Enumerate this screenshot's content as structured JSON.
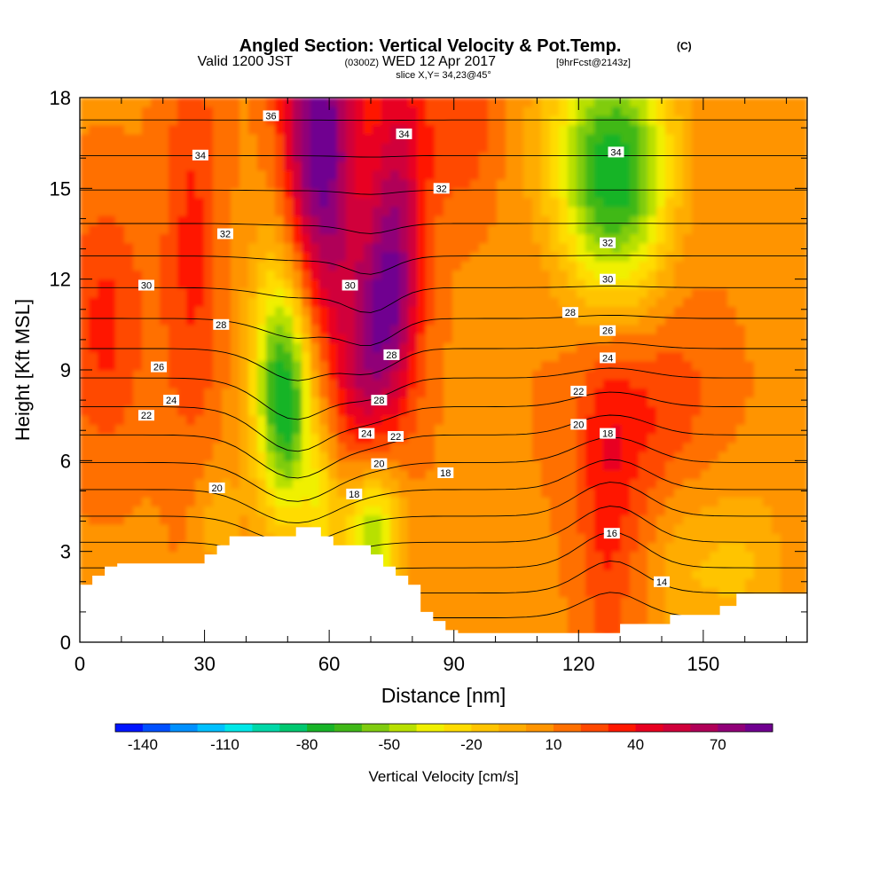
{
  "header": {
    "title_main": "Angled Section: Vertical Velocity & Pot.Temp.",
    "title_unit": "(C)",
    "valid_prefix": "Valid 1200 JST",
    "valid_utc": "(0300Z)",
    "valid_date": "WED 12 Apr 2017",
    "forecast": "[9hrFcst@2143z]",
    "slice": "slice X,Y= 34,23@45°"
  },
  "chart_data": {
    "type": "heatmap",
    "title": "Angled Section: Vertical Velocity & Pot.Temp. (C)",
    "xlabel": "Distance [nm]",
    "ylabel": "Height [Kft MSL]",
    "xlim": [
      0,
      175
    ],
    "ylim": [
      0,
      18
    ],
    "x_ticks": [
      0,
      30,
      60,
      90,
      120,
      150
    ],
    "y_ticks": [
      0,
      3,
      6,
      9,
      12,
      15,
      18
    ],
    "grid": false,
    "colorbar": {
      "label": "Vertical Velocity [cm/s]",
      "tick_labels": [
        "-140",
        "-110",
        "-80",
        "-50",
        "-20",
        "10",
        "40",
        "70"
      ],
      "tick_values": [
        -140,
        -110,
        -80,
        -50,
        -20,
        10,
        40,
        70
      ],
      "range": [
        -150,
        90
      ],
      "step": 10,
      "colors": [
        "#0014ff",
        "#0050ff",
        "#0090ff",
        "#00c0ff",
        "#00e8e8",
        "#00d8a8",
        "#00c870",
        "#18b428",
        "#40b818",
        "#80cc10",
        "#b8e000",
        "#f0f000",
        "#ffdc00",
        "#ffc400",
        "#ffac00",
        "#ff9400",
        "#ff7000",
        "#ff4800",
        "#ff1800",
        "#e80020",
        "#d0003a",
        "#b00058",
        "#900078",
        "#700090"
      ]
    },
    "terrain_profile": {
      "x": [
        0,
        3,
        3,
        6,
        6,
        9,
        9,
        30,
        30,
        33,
        33,
        36,
        36,
        52,
        52,
        58,
        58,
        61,
        61,
        64,
        64,
        70,
        70,
        73,
        73,
        76,
        76,
        79,
        79,
        82,
        82,
        85,
        85,
        88,
        88,
        91,
        91,
        130,
        130,
        142,
        142,
        154,
        154,
        158,
        158,
        175
      ],
      "h": [
        1.9,
        1.9,
        2.2,
        2.2,
        2.5,
        2.5,
        2.6,
        2.6,
        2.9,
        2.9,
        3.2,
        3.2,
        3.5,
        3.5,
        3.8,
        3.8,
        3.5,
        3.5,
        3.2,
        3.2,
        3.2,
        3.2,
        2.9,
        2.9,
        2.5,
        2.5,
        2.2,
        2.2,
        1.9,
        1.9,
        1.0,
        1.0,
        0.7,
        0.7,
        0.4,
        0.4,
        0.3,
        0.3,
        0.6,
        0.6,
        0.9,
        0.9,
        1.2,
        1.2,
        1.6,
        1.6
      ]
    },
    "velocity_features": [
      {
        "x": 57,
        "h": 17.5,
        "sx": 6,
        "sh": 3.5,
        "value": 60
      },
      {
        "x": 60,
        "h": 13.5,
        "sx": 7,
        "sh": 4.5,
        "value": 35
      },
      {
        "x": 77,
        "h": 14.5,
        "sx": 5,
        "sh": 4.5,
        "value": 45
      },
      {
        "x": 74,
        "h": 11.0,
        "sx": 4,
        "sh": 2.5,
        "value": 40
      },
      {
        "x": 68,
        "h": 9.0,
        "sx": 4,
        "sh": 2.5,
        "value": 35
      },
      {
        "x": 50,
        "h": 7.5,
        "sx": 5,
        "sh": 2.5,
        "value": -65
      },
      {
        "x": 48,
        "h": 10.0,
        "sx": 5,
        "sh": 3.0,
        "value": -40
      },
      {
        "x": 70,
        "h": 3.5,
        "sx": 5,
        "sh": 1.8,
        "value": -60
      },
      {
        "x": 58,
        "h": 4.5,
        "sx": 3,
        "sh": 1.5,
        "value": -30
      },
      {
        "x": 127,
        "h": 16.5,
        "sx": 10,
        "sh": 2.5,
        "value": -60
      },
      {
        "x": 135,
        "h": 14.0,
        "sx": 6,
        "sh": 3.0,
        "value": -25
      },
      {
        "x": 125,
        "h": 13.5,
        "sx": 7,
        "sh": 2.5,
        "value": -30
      },
      {
        "x": 27,
        "h": 13.0,
        "sx": 5,
        "sh": 5.0,
        "value": 25
      },
      {
        "x": 6,
        "h": 10.5,
        "sx": 7,
        "sh": 3.0,
        "value": 25
      },
      {
        "x": 135,
        "h": 8.0,
        "sx": 12,
        "sh": 2.5,
        "value": 25
      },
      {
        "x": 127,
        "h": 4.0,
        "sx": 5,
        "sh": 3.5,
        "value": 22
      },
      {
        "x": 158,
        "h": 2.5,
        "sx": 8,
        "sh": 2.0,
        "value": -20
      },
      {
        "x": 145,
        "h": 2.5,
        "sx": 5,
        "sh": 2.0,
        "value": -12
      },
      {
        "x": 33,
        "h": 4.0,
        "sx": 4,
        "sh": 1.5,
        "value": -15
      },
      {
        "x": 92,
        "h": 17.0,
        "sx": 6,
        "sh": 2.0,
        "value": 20
      }
    ],
    "potential_temperature": {
      "label": "Pot.Temp. (C)",
      "contour_interval": 1,
      "labels": [
        {
          "text": "36",
          "x": 46,
          "h": 17.4
        },
        {
          "text": "34",
          "x": 29,
          "h": 16.1
        },
        {
          "text": "34",
          "x": 78,
          "h": 16.8
        },
        {
          "text": "34",
          "x": 129,
          "h": 16.2
        },
        {
          "text": "32",
          "x": 87,
          "h": 15.0
        },
        {
          "text": "32",
          "x": 35,
          "h": 13.5
        },
        {
          "text": "32",
          "x": 127,
          "h": 13.2
        },
        {
          "text": "30",
          "x": 16,
          "h": 11.8
        },
        {
          "text": "30",
          "x": 65,
          "h": 11.8
        },
        {
          "text": "30",
          "x": 127,
          "h": 12.0
        },
        {
          "text": "28",
          "x": 34,
          "h": 10.5
        },
        {
          "text": "28",
          "x": 118,
          "h": 10.9
        },
        {
          "text": "28",
          "x": 75,
          "h": 9.5
        },
        {
          "text": "28",
          "x": 72,
          "h": 8.0
        },
        {
          "text": "26",
          "x": 19,
          "h": 9.1
        },
        {
          "text": "26",
          "x": 127,
          "h": 10.3
        },
        {
          "text": "24",
          "x": 22,
          "h": 8.0
        },
        {
          "text": "24",
          "x": 127,
          "h": 9.4
        },
        {
          "text": "24",
          "x": 69,
          "h": 6.9
        },
        {
          "text": "22",
          "x": 16,
          "h": 7.5
        },
        {
          "text": "22",
          "x": 120,
          "h": 8.3
        },
        {
          "text": "22",
          "x": 76,
          "h": 6.8
        },
        {
          "text": "20",
          "x": 33,
          "h": 5.1
        },
        {
          "text": "20",
          "x": 72,
          "h": 5.9
        },
        {
          "text": "20",
          "x": 120,
          "h": 7.2
        },
        {
          "text": "18",
          "x": 127,
          "h": 6.9
        },
        {
          "text": "18",
          "x": 66,
          "h": 4.9
        },
        {
          "text": "18",
          "x": 88,
          "h": 5.6
        },
        {
          "text": "16",
          "x": 128,
          "h": 3.6
        },
        {
          "text": "14",
          "x": 140,
          "h": 2.0
        }
      ]
    }
  }
}
